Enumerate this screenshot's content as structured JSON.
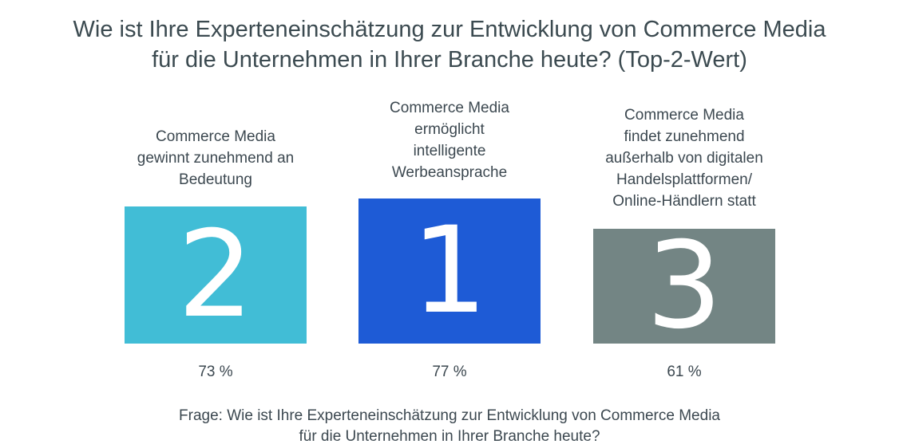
{
  "title": {
    "line1": "Wie ist Ihre Experteneinschätzung zur Entwicklung von Commerce Media",
    "line2": "für die Unternehmen in Ihrer Branche heute? (Top-2-Wert)"
  },
  "chart_data": {
    "type": "bar",
    "categories": [
      "Commerce Media gewinnt zunehmend an Bedeutung",
      "Commerce Media ermöglicht intelligente Werbeansprache",
      "Commerce Media findet zunehmend außerhalb von digitalen Handelsplattformen/ Online-Händlern statt"
    ],
    "values": [
      73,
      77,
      61
    ],
    "unit": "%",
    "ranks": [
      2,
      1,
      3
    ],
    "colors": [
      "#41bdd6",
      "#1e5bd6",
      "#738584"
    ],
    "ylim": [
      0,
      100
    ]
  },
  "items": [
    {
      "label_lines": [
        "Commerce Media",
        "gewinnt zunehmend an",
        "Bedeutung"
      ],
      "rank": "2",
      "value_text": "73 %"
    },
    {
      "label_lines": [
        "Commerce Media",
        "ermöglicht",
        "intelligente",
        "Werbeansprache"
      ],
      "rank": "1",
      "value_text": "77 %"
    },
    {
      "label_lines": [
        "Commerce Media",
        "findet zunehmend",
        "außerhalb von digitalen",
        "Handelsplattformen/",
        "Online-Händlern statt"
      ],
      "rank": "3",
      "value_text": "61 %"
    }
  ],
  "footer": {
    "line1": "Frage: Wie ist Ihre Experteneinschätzung zur Entwicklung von Commerce Media",
    "line2": "für die Unternehmen in Ihrer Branche heute?"
  }
}
